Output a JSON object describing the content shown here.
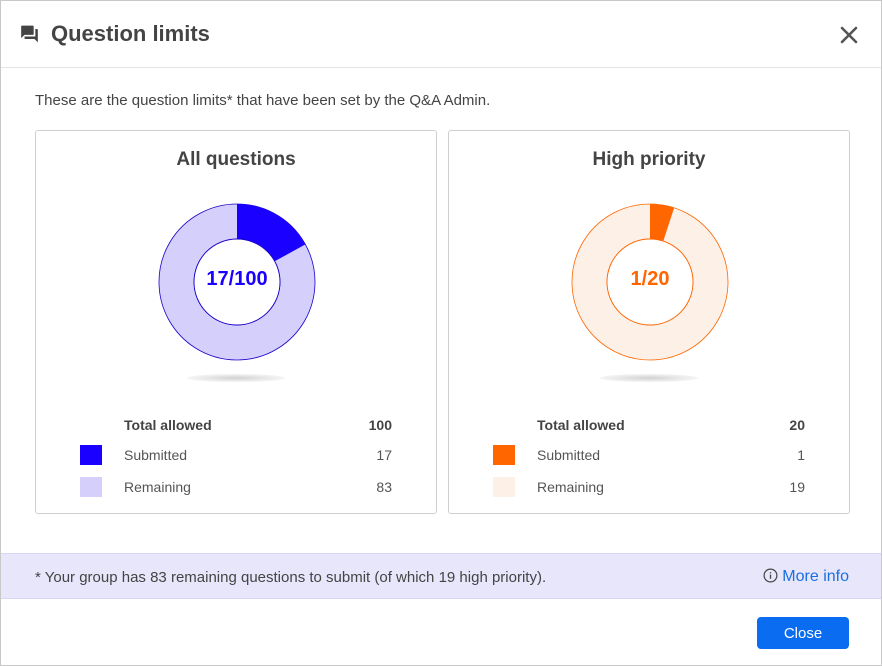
{
  "dialog": {
    "title": "Question limits",
    "title_icon": "chat-bubbles-icon",
    "close_icon": "close-icon"
  },
  "intro": "These are the question limits* that have been set by the Q&A Admin.",
  "cards": [
    {
      "title": "All questions",
      "center_label": "17/100",
      "accent": "#1a00ff",
      "remaining_color": "#d4d0fb",
      "ring_stroke": "#1a00cc",
      "total_label": "Total allowed",
      "total_value": "100",
      "submitted_label": "Submitted",
      "submitted_value": "17",
      "remaining_label": "Remaining",
      "remaining_value": "83",
      "fraction": 0.17
    },
    {
      "title": "High priority",
      "center_label": "1/20",
      "accent": "#ff6600",
      "remaining_color": "#fdf0e6",
      "ring_stroke": "#ff6600",
      "total_label": "Total allowed",
      "total_value": "20",
      "submitted_label": "Submitted",
      "submitted_value": "1",
      "remaining_label": "Remaining",
      "remaining_value": "19",
      "fraction": 0.05
    }
  ],
  "footer": {
    "note": "* Your group has 83 remaining questions to submit (of which 19 high priority).",
    "more_info": "More info",
    "more_info_icon": "info-icon",
    "close_label": "Close"
  }
}
